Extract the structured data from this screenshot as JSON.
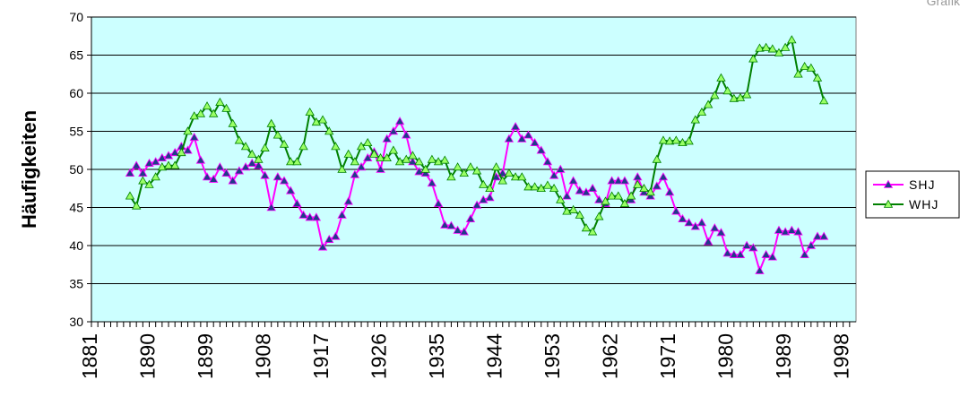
{
  "chart_data": {
    "type": "line",
    "ylabel": "Häufigkeiten",
    "corner_label": "Grafik",
    "ylim": [
      30,
      70
    ],
    "yticks": [
      30,
      35,
      40,
      45,
      50,
      55,
      60,
      65,
      70
    ],
    "xlim": [
      1881,
      2000
    ],
    "xticks": [
      1881,
      1890,
      1899,
      1908,
      1917,
      1926,
      1935,
      1944,
      1953,
      1962,
      1971,
      1980,
      1989,
      1998
    ],
    "grid": true,
    "legend_position": "right",
    "plot_background": "#ccffff",
    "series": [
      {
        "name": "SHJ",
        "line_color": "#ff00ff",
        "marker_color": "#1f3c88",
        "marker": "triangle",
        "x": [
          1887,
          1888,
          1889,
          1890,
          1891,
          1892,
          1893,
          1894,
          1895,
          1896,
          1897,
          1898,
          1899,
          1900,
          1901,
          1902,
          1903,
          1904,
          1905,
          1906,
          1907,
          1908,
          1909,
          1910,
          1911,
          1912,
          1913,
          1914,
          1915,
          1916,
          1917,
          1918,
          1919,
          1920,
          1921,
          1922,
          1923,
          1924,
          1925,
          1926,
          1927,
          1928,
          1929,
          1930,
          1931,
          1932,
          1933,
          1934,
          1935,
          1936,
          1937,
          1938,
          1939,
          1940,
          1941,
          1942,
          1943,
          1944,
          1945,
          1946,
          1947,
          1948,
          1949,
          1950,
          1951,
          1952,
          1953,
          1954,
          1955,
          1956,
          1957,
          1958,
          1959,
          1960,
          1961,
          1962,
          1963,
          1964,
          1965,
          1966,
          1967,
          1968,
          1969,
          1970,
          1971,
          1972,
          1973,
          1974,
          1975,
          1976,
          1977,
          1978,
          1979,
          1980,
          1981,
          1982,
          1983,
          1984,
          1985,
          1986,
          1987,
          1988,
          1989,
          1990,
          1991,
          1992,
          1993,
          1994,
          1995
        ],
        "values": [
          49.5,
          50.5,
          49.5,
          50.8,
          51.0,
          51.5,
          51.8,
          52.2,
          53.0,
          52.5,
          54.2,
          51.2,
          49.0,
          48.7,
          50.3,
          49.5,
          48.5,
          49.8,
          50.3,
          50.8,
          50.5,
          49.2,
          45.0,
          49.0,
          48.5,
          47.2,
          45.5,
          44.0,
          43.7,
          43.7,
          39.8,
          40.8,
          41.2,
          44.0,
          45.8,
          49.3,
          50.3,
          51.5,
          52.3,
          50.0,
          54.0,
          55.0,
          56.3,
          54.5,
          51.0,
          49.7,
          49.5,
          48.2,
          45.5,
          42.7,
          42.6,
          42.0,
          41.8,
          43.5,
          45.3,
          46.0,
          46.3,
          49.0,
          49.5,
          54.0,
          55.6,
          54.0,
          54.5,
          53.5,
          52.5,
          51.0,
          49.2,
          50.0,
          46.5,
          48.5,
          47.2,
          47.0,
          47.5,
          46.0,
          45.5,
          48.5,
          48.5,
          48.5,
          46.0,
          49.0,
          47.0,
          46.5,
          47.8,
          49.0,
          47.0,
          44.5,
          43.5,
          43.0,
          42.5,
          43.0,
          40.5,
          42.3,
          41.7,
          39.0,
          38.8,
          38.8,
          40.0,
          39.7,
          36.7,
          38.8,
          38.5,
          42.0,
          41.8,
          42.0,
          41.8,
          38.8,
          40.0,
          41.2,
          41.2
        ]
      },
      {
        "name": "WHJ",
        "line_color": "#008000",
        "marker_color": "#99ff66",
        "marker": "triangle",
        "x": [
          1887,
          1888,
          1889,
          1890,
          1891,
          1892,
          1893,
          1894,
          1895,
          1896,
          1897,
          1898,
          1899,
          1900,
          1901,
          1902,
          1903,
          1904,
          1905,
          1906,
          1907,
          1908,
          1909,
          1910,
          1911,
          1912,
          1913,
          1914,
          1915,
          1916,
          1917,
          1918,
          1919,
          1920,
          1921,
          1922,
          1923,
          1924,
          1925,
          1926,
          1927,
          1928,
          1929,
          1930,
          1931,
          1932,
          1933,
          1934,
          1935,
          1936,
          1937,
          1938,
          1939,
          1940,
          1941,
          1942,
          1943,
          1944,
          1945,
          1946,
          1947,
          1948,
          1949,
          1950,
          1951,
          1952,
          1953,
          1954,
          1955,
          1956,
          1957,
          1958,
          1959,
          1960,
          1961,
          1962,
          1963,
          1964,
          1965,
          1966,
          1967,
          1968,
          1969,
          1970,
          1971,
          1972,
          1973,
          1974,
          1975,
          1976,
          1977,
          1978,
          1979,
          1980,
          1981,
          1982,
          1983,
          1984,
          1985,
          1986,
          1987,
          1988,
          1989,
          1990,
          1991,
          1992,
          1993,
          1994,
          1995
        ],
        "values": [
          46.5,
          45.2,
          48.5,
          48.0,
          49.0,
          50.3,
          50.5,
          50.5,
          52.2,
          55.0,
          57.0,
          57.3,
          58.3,
          57.3,
          58.8,
          58.0,
          56.0,
          53.8,
          53.0,
          52.0,
          51.3,
          52.8,
          56.0,
          54.5,
          53.3,
          51.0,
          51.0,
          53.0,
          57.5,
          56.2,
          56.5,
          55.0,
          53.0,
          50.0,
          52.0,
          51.0,
          53.0,
          53.5,
          52.0,
          51.5,
          51.5,
          52.5,
          51.0,
          51.3,
          51.8,
          51.0,
          50.0,
          51.3,
          51.0,
          51.2,
          49.0,
          50.3,
          49.5,
          50.3,
          49.8,
          48.0,
          47.5,
          50.3,
          48.5,
          49.5,
          49.0,
          49.0,
          47.7,
          47.7,
          47.5,
          47.9,
          47.5,
          46.0,
          44.5,
          44.7,
          44.0,
          42.3,
          41.8,
          43.8,
          45.8,
          46.5,
          46.5,
          45.5,
          46.5,
          48.0,
          47.5,
          47.0,
          51.3,
          53.8,
          53.7,
          53.8,
          53.5,
          53.7,
          56.5,
          57.5,
          58.5,
          59.7,
          62.0,
          60.3,
          59.3,
          59.4,
          59.8,
          64.5,
          65.9,
          66.0,
          65.8,
          65.3,
          66.0,
          67.0,
          62.5,
          63.5,
          63.3,
          62.0,
          59.0
        ]
      }
    ]
  }
}
